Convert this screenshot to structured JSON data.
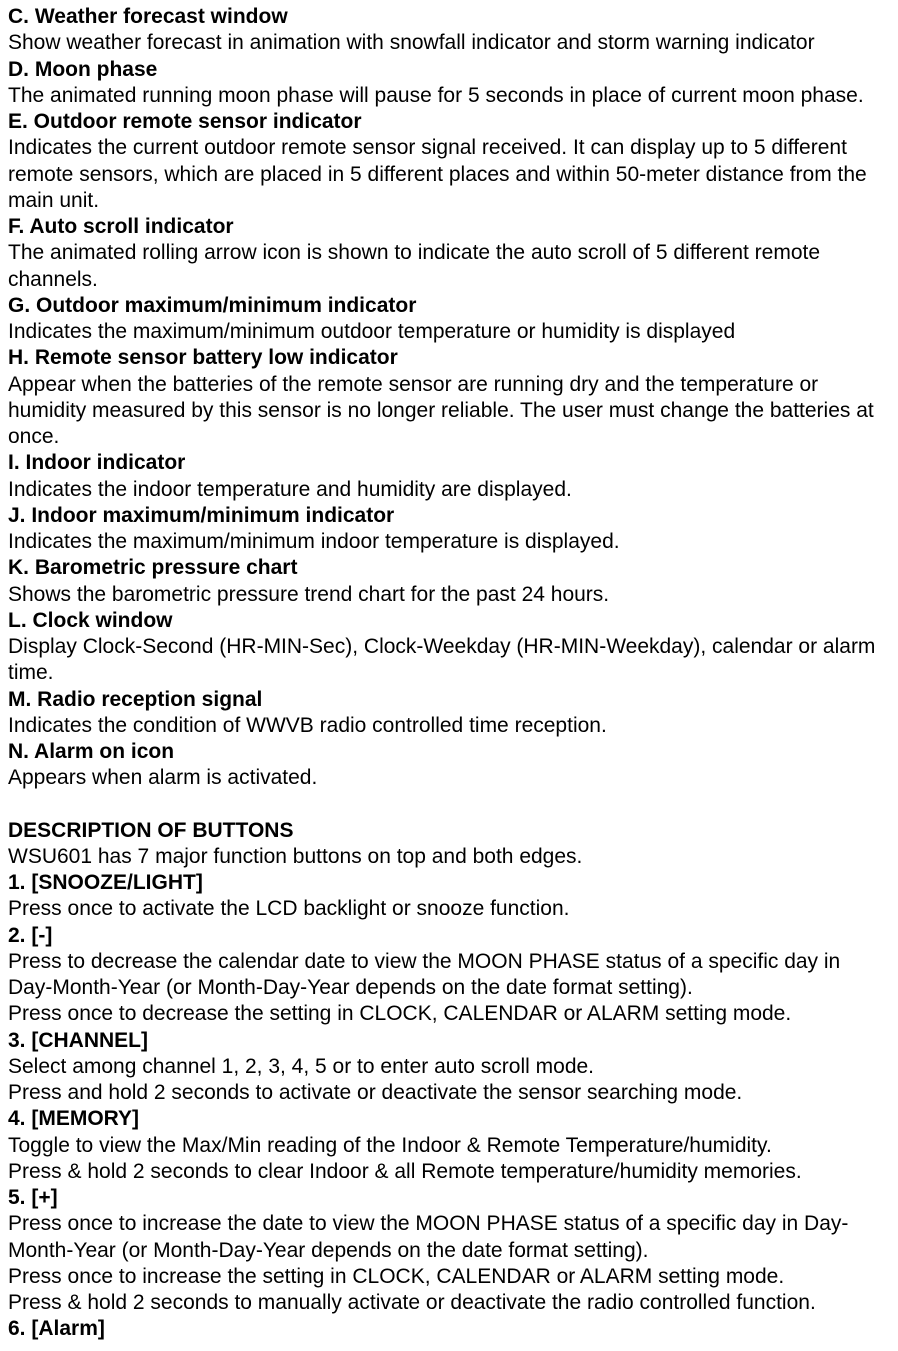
{
  "items": [
    {
      "label": "C. Weather forecast window",
      "text": "Show weather forecast in animation with snowfall indicator and storm warning indicator"
    },
    {
      "label": "D. Moon phase",
      "text": "The animated running moon phase will pause for 5 seconds in place of current moon phase."
    },
    {
      "label": "E. Outdoor remote sensor indicator",
      "text": "Indicates the current outdoor remote sensor signal received. It can display up to 5 different remote sensors, which are placed in 5 different places and within 50-meter distance from the main unit."
    },
    {
      "label": "F. Auto scroll indicator",
      "text": "The animated rolling arrow icon is shown to indicate the auto scroll of 5 different remote channels."
    },
    {
      "label": "G. Outdoor maximum/minimum indicator",
      "text": "Indicates the maximum/minimum outdoor temperature or humidity is displayed"
    },
    {
      "label": "H. Remote sensor battery low indicator",
      "text": "Appear when the batteries of the remote sensor are running dry and the temperature or humidity measured by this sensor is no longer reliable. The user must change the batteries at once."
    },
    {
      "label": "I. Indoor indicator",
      "text": "Indicates the indoor temperature and humidity are displayed."
    },
    {
      "label": "J. Indoor maximum/minimum indicator",
      "text": "Indicates the maximum/minimum indoor temperature is displayed."
    },
    {
      "label": "K. Barometric pressure chart",
      "text": "Shows the barometric pressure trend chart for the past 24 hours."
    },
    {
      "label": "L. Clock window",
      "text": "Display Clock-Second (HR-MIN-Sec), Clock-Weekday (HR-MIN-Weekday), calendar or alarm time."
    },
    {
      "label": "M. Radio reception signal",
      "text": "Indicates the condition of WWVB radio controlled time reception."
    },
    {
      "label": "N. Alarm on icon",
      "text": "Appears when alarm is activated."
    }
  ],
  "buttonsHeader": "DESCRIPTION OF BUTTONS",
  "buttonsIntro": "WSU601 has 7 major function buttons on top and both edges.",
  "buttons": [
    {
      "label": "1. [SNOOZE/LIGHT]",
      "lines": [
        "Press once to activate the LCD backlight or snooze function."
      ]
    },
    {
      "label": "2. [-]",
      "lines": [
        "Press to decrease the calendar date to view the MOON PHASE status of a specific day in Day-Month-Year (or Month-Day-Year depends on the date format setting).",
        "Press once to decrease the setting in CLOCK, CALENDAR or ALARM setting mode."
      ]
    },
    {
      "label": "3. [CHANNEL]",
      "lines": [
        "Select among channel 1, 2, 3, 4, 5 or to enter auto scroll mode.",
        "Press and hold 2 seconds to activate or deactivate the sensor searching mode."
      ]
    },
    {
      "label": "4. [MEMORY]",
      "lines": [
        "Toggle to view the Max/Min reading of the Indoor & Remote Temperature/humidity.",
        "Press & hold 2 seconds to clear Indoor & all Remote temperature/humidity memories."
      ]
    },
    {
      "label": "5. [+]",
      "lines": [
        "Press once to increase the date to view the MOON PHASE status of a specific day in Day-Month-Year (or Month-Day-Year depends on the date format setting).",
        "Press once to increase the setting in CLOCK, CALENDAR or ALARM setting mode.",
        "Press & hold 2 seconds to manually activate or deactivate the radio controlled function."
      ]
    },
    {
      "label": "6. [Alarm]",
      "lines": []
    }
  ]
}
